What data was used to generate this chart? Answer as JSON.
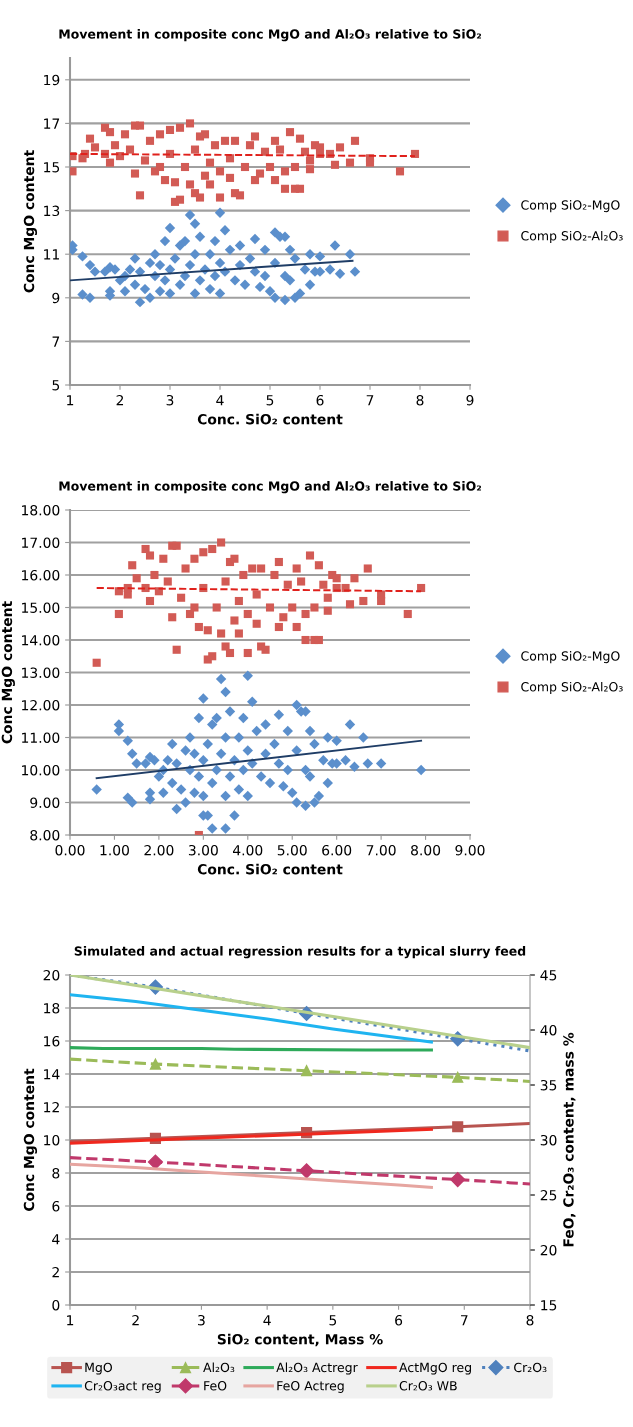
{
  "chart_data": [
    {
      "type": "scatter",
      "title": "Movement in composite conc MgO and Al₂O₃ relative to SiO₂",
      "xlabel": "Conc. SiO₂ content",
      "ylabel": "Conc MgO content",
      "xlim": [
        1,
        9
      ],
      "xticks": [
        1,
        2,
        3,
        4,
        5,
        6,
        7,
        8,
        9
      ],
      "ylim": [
        5,
        20
      ],
      "yticks": [
        5,
        7,
        9,
        11,
        13,
        15,
        17,
        19
      ],
      "grid": "y",
      "legend": "right",
      "series": [
        {
          "name": "Comp SiO₂-MgO",
          "marker": "diamond",
          "color": "#5b8fcc",
          "x": [
            1.05,
            1.05,
            1.25,
            1.4,
            1.5,
            1.25,
            1.4,
            1.7,
            1.8,
            1.8,
            1.8,
            1.9,
            2.0,
            2.1,
            2.1,
            2.2,
            2.3,
            2.3,
            2.4,
            2.4,
            2.5,
            2.6,
            2.6,
            2.7,
            2.7,
            2.8,
            2.8,
            2.9,
            2.9,
            3.0,
            3.0,
            3.0,
            3.1,
            3.2,
            3.2,
            3.3,
            3.3,
            3.4,
            3.4,
            3.5,
            3.5,
            3.5,
            3.6,
            3.6,
            3.7,
            3.8,
            3.8,
            3.9,
            3.9,
            4.0,
            4.0,
            4.0,
            4.1,
            4.1,
            4.2,
            4.3,
            4.4,
            4.4,
            4.5,
            4.6,
            4.7,
            4.7,
            4.8,
            4.9,
            4.9,
            5.0,
            5.1,
            5.1,
            5.1,
            5.2,
            5.3,
            5.3,
            5.3,
            5.4,
            5.4,
            5.5,
            5.5,
            5.6,
            5.7,
            5.8,
            5.8,
            5.9,
            6.0,
            6.0,
            6.2,
            6.3,
            6.4,
            6.6,
            6.7
          ],
          "values": [
            11.4,
            11.2,
            10.9,
            10.5,
            10.2,
            9.15,
            9.0,
            10.2,
            10.4,
            9.3,
            9.1,
            10.3,
            9.8,
            10.0,
            9.3,
            10.3,
            9.6,
            10.8,
            8.8,
            10.2,
            9.4,
            10.6,
            9.0,
            10.0,
            11.0,
            9.3,
            10.5,
            11.6,
            9.8,
            12.2,
            10.3,
            9.2,
            10.8,
            9.6,
            11.4,
            10.0,
            11.6,
            12.8,
            10.5,
            12.4,
            9.2,
            11.0,
            9.8,
            11.8,
            10.3,
            11.0,
            9.4,
            11.6,
            10.0,
            12.9,
            10.6,
            9.2,
            12.1,
            10.2,
            11.2,
            9.8,
            11.4,
            10.5,
            9.6,
            10.8,
            11.7,
            10.2,
            9.5,
            11.2,
            10.0,
            9.3,
            12.0,
            10.6,
            9.0,
            11.8,
            11.8,
            8.9,
            10.0,
            11.2,
            9.8,
            10.8,
            9.0,
            9.2,
            10.3,
            11.0,
            9.6,
            10.2,
            10.9,
            10.2,
            10.3,
            11.4,
            10.1,
            11.0,
            10.2
          ]
        },
        {
          "name": "Comp SiO₂-Al₂O₃",
          "marker": "square",
          "color": "#d25b55",
          "x": [
            1.05,
            1.05,
            1.25,
            1.3,
            1.4,
            1.5,
            1.7,
            1.7,
            1.8,
            1.8,
            1.9,
            2.0,
            2.1,
            2.2,
            2.3,
            2.3,
            2.4,
            2.4,
            2.5,
            2.6,
            2.7,
            2.8,
            2.8,
            2.9,
            3.0,
            3.0,
            3.1,
            3.1,
            3.2,
            3.2,
            3.3,
            3.4,
            3.4,
            3.5,
            3.5,
            3.6,
            3.6,
            3.7,
            3.7,
            3.8,
            3.8,
            3.9,
            4.0,
            4.0,
            4.1,
            4.2,
            4.2,
            4.3,
            4.3,
            4.4,
            4.5,
            4.6,
            4.7,
            4.7,
            4.8,
            4.9,
            5.0,
            5.1,
            5.1,
            5.2,
            5.3,
            5.3,
            5.4,
            5.5,
            5.5,
            5.6,
            5.6,
            5.7,
            5.8,
            5.8,
            5.9,
            6.0,
            6.0,
            6.2,
            6.3,
            6.4,
            6.6,
            6.7,
            7.0,
            7.0,
            7.6,
            7.9
          ],
          "values": [
            15.5,
            14.8,
            15.4,
            15.6,
            16.3,
            15.9,
            16.8,
            15.6,
            15.2,
            16.6,
            16.0,
            15.5,
            16.5,
            15.8,
            16.9,
            14.7,
            16.9,
            13.7,
            15.3,
            16.2,
            14.8,
            16.5,
            15.0,
            14.4,
            16.7,
            15.6,
            13.4,
            14.3,
            13.5,
            16.8,
            15.0,
            17.0,
            14.2,
            15.8,
            13.8,
            16.4,
            13.6,
            14.6,
            16.5,
            15.2,
            14.2,
            16.0,
            13.6,
            14.8,
            16.2,
            15.4,
            14.5,
            16.2,
            13.8,
            13.7,
            15.0,
            16.0,
            14.4,
            16.4,
            14.7,
            15.7,
            15.0,
            16.2,
            14.4,
            15.8,
            14.0,
            14.8,
            16.6,
            15.0,
            14.0,
            14.0,
            16.3,
            15.7,
            15.3,
            14.9,
            16.0,
            15.9,
            15.6,
            15.6,
            15.1,
            15.9,
            15.2,
            16.2,
            15.4,
            15.2,
            14.8,
            15.6
          ]
        },
        {
          "type": "line",
          "line_style": "solid",
          "color": "#1f3d66",
          "x": [
            1,
            6.65
          ],
          "values": [
            9.8,
            10.7
          ]
        },
        {
          "type": "line",
          "line_style": "dashed",
          "color": "#e0201b",
          "x": [
            1,
            7.9
          ],
          "values": [
            15.6,
            15.5
          ]
        }
      ]
    },
    {
      "type": "scatter",
      "title": "Movement in composite conc MgO and Al₂O₃ relative to SiO₂",
      "xlabel": "Conc. SiO₂ content",
      "ylabel": "Conc MgO content",
      "xlim": [
        0,
        9
      ],
      "xticks": [
        {
          "value": 0,
          "label": "0.00"
        },
        {
          "value": 1,
          "label": "1.00"
        },
        {
          "value": 2,
          "label": "2.00"
        },
        {
          "value": 3,
          "label": "3.00"
        },
        {
          "value": 4,
          "label": "4.00"
        },
        {
          "value": 5,
          "label": "5.00"
        },
        {
          "value": 6,
          "label": "6.00"
        },
        {
          "value": 7,
          "label": "7.00"
        },
        {
          "value": 8,
          "label": "8.00"
        },
        {
          "value": 9,
          "label": "9.00"
        }
      ],
      "ylim": [
        8,
        18
      ],
      "yticks": [
        {
          "value": 8,
          "label": "8.00"
        },
        {
          "value": 9,
          "label": "9.00"
        },
        {
          "value": 10,
          "label": "10.00"
        },
        {
          "value": 11,
          "label": "11.00"
        },
        {
          "value": 12,
          "label": "12.00"
        },
        {
          "value": 13,
          "label": "13.00"
        },
        {
          "value": 14,
          "label": "14.00"
        },
        {
          "value": 15,
          "label": "15.00"
        },
        {
          "value": 16,
          "label": "16.00"
        },
        {
          "value": 17,
          "label": "17.00"
        },
        {
          "value": 18,
          "label": "18.00"
        }
      ],
      "grid": "y",
      "legend": "right",
      "series": [
        {
          "name": "Comp SiO₂-MgO",
          "marker": "diamond",
          "color": "#5b8fcc",
          "x": [
            0.6,
            1.1,
            1.1,
            1.3,
            1.4,
            1.5,
            1.3,
            1.4,
            1.7,
            1.8,
            1.8,
            1.8,
            1.9,
            2.0,
            2.1,
            2.1,
            2.2,
            2.3,
            2.3,
            2.4,
            2.4,
            2.5,
            2.6,
            2.6,
            2.7,
            2.7,
            2.8,
            2.8,
            2.9,
            2.9,
            3.0,
            3.0,
            3.0,
            3.1,
            3.2,
            3.2,
            3.3,
            3.3,
            3.4,
            3.4,
            3.5,
            3.5,
            3.5,
            3.6,
            3.6,
            3.7,
            3.8,
            3.8,
            3.9,
            3.9,
            4.0,
            4.0,
            4.0,
            4.1,
            4.1,
            4.2,
            4.3,
            4.4,
            4.4,
            4.5,
            4.6,
            4.7,
            4.7,
            4.8,
            4.9,
            4.9,
            5.0,
            5.1,
            5.1,
            5.1,
            5.2,
            5.3,
            5.3,
            5.3,
            5.4,
            5.4,
            5.5,
            5.5,
            5.6,
            5.7,
            5.8,
            5.8,
            5.9,
            6.0,
            6.0,
            6.2,
            6.3,
            6.4,
            6.6,
            6.7,
            7.0,
            7.9,
            3.0,
            3.1,
            3.2,
            3.5,
            3.7
          ],
          "values": [
            9.4,
            11.4,
            11.2,
            10.9,
            10.5,
            10.2,
            9.15,
            9.0,
            10.2,
            10.4,
            9.3,
            9.1,
            10.3,
            9.8,
            10.0,
            9.3,
            10.3,
            9.6,
            10.8,
            8.8,
            10.2,
            9.4,
            10.6,
            9.0,
            10.0,
            11.0,
            9.3,
            10.5,
            11.6,
            9.8,
            12.2,
            10.3,
            9.2,
            10.8,
            9.6,
            11.4,
            10.0,
            11.6,
            12.8,
            10.5,
            12.4,
            9.2,
            11.0,
            9.8,
            11.8,
            10.3,
            11.0,
            9.4,
            11.6,
            10.0,
            12.9,
            10.6,
            9.2,
            12.1,
            10.2,
            11.2,
            9.8,
            11.4,
            10.5,
            9.6,
            10.8,
            11.7,
            10.2,
            9.5,
            11.2,
            10.0,
            9.3,
            12.0,
            10.6,
            9.0,
            11.8,
            11.8,
            8.9,
            10.0,
            11.2,
            9.8,
            10.8,
            9.0,
            9.2,
            10.3,
            11.0,
            9.6,
            10.2,
            10.9,
            10.2,
            10.3,
            11.4,
            10.1,
            11.0,
            10.2,
            10.2,
            10.0,
            8.6,
            8.6,
            8.2,
            8.2,
            8.6
          ]
        },
        {
          "name": "Comp SiO₂-Al₂O₃",
          "marker": "square",
          "color": "#d25b55",
          "x": [
            0.6,
            1.1,
            1.1,
            1.3,
            1.3,
            1.4,
            1.5,
            1.7,
            1.7,
            1.8,
            1.8,
            1.9,
            2.0,
            2.1,
            2.2,
            2.3,
            2.3,
            2.4,
            2.4,
            2.5,
            2.6,
            2.7,
            2.8,
            2.8,
            2.9,
            2.9,
            3.0,
            3.0,
            3.1,
            3.1,
            3.2,
            3.2,
            3.3,
            3.4,
            3.4,
            3.5,
            3.5,
            3.6,
            3.6,
            3.7,
            3.7,
            3.8,
            3.8,
            3.9,
            4.0,
            4.0,
            4.1,
            4.2,
            4.2,
            4.3,
            4.3,
            4.4,
            4.5,
            4.6,
            4.7,
            4.7,
            4.8,
            4.9,
            5.0,
            5.1,
            5.1,
            5.2,
            5.3,
            5.3,
            5.4,
            5.5,
            5.5,
            5.6,
            5.6,
            5.7,
            5.8,
            5.8,
            5.9,
            6.0,
            6.0,
            6.2,
            6.3,
            6.4,
            6.6,
            6.7,
            7.0,
            7.0,
            7.6,
            7.9
          ],
          "values": [
            13.3,
            15.5,
            14.8,
            15.4,
            15.6,
            16.3,
            15.9,
            16.8,
            15.6,
            15.2,
            16.6,
            16.0,
            15.5,
            16.5,
            15.8,
            16.9,
            14.7,
            16.9,
            13.7,
            15.3,
            16.2,
            14.8,
            16.5,
            15.0,
            14.4,
            8.0,
            16.7,
            15.6,
            13.4,
            14.3,
            13.5,
            16.8,
            15.0,
            17.0,
            14.2,
            15.8,
            13.8,
            16.4,
            13.6,
            14.6,
            16.5,
            15.2,
            14.2,
            16.0,
            13.6,
            14.8,
            16.2,
            15.4,
            14.5,
            16.2,
            13.8,
            13.7,
            15.0,
            16.0,
            14.4,
            16.4,
            14.7,
            15.7,
            15.0,
            16.2,
            14.4,
            15.8,
            14.0,
            14.8,
            16.6,
            15.0,
            14.0,
            14.0,
            16.3,
            15.7,
            15.3,
            14.9,
            16.0,
            15.9,
            15.6,
            15.6,
            15.1,
            15.9,
            15.2,
            16.2,
            15.4,
            15.2,
            14.8,
            15.6
          ]
        },
        {
          "type": "line",
          "line_style": "solid",
          "color": "#1f3d66",
          "x": [
            0.6,
            7.9
          ],
          "values": [
            9.75,
            10.9
          ]
        },
        {
          "type": "line",
          "line_style": "dashed",
          "color": "#e0201b",
          "x": [
            0.6,
            7.9
          ],
          "values": [
            15.6,
            15.5
          ]
        }
      ]
    },
    {
      "type": "line",
      "title": "Simulated and actual regression results for a typical slurry feed",
      "xlabel": "SiO₂ content, Mass %",
      "ylabel": "Conc MgO content",
      "y2label": "FeO, Cr₂O₃ content, mass %",
      "xlim": [
        1,
        8
      ],
      "xticks": [
        1,
        2,
        3,
        4,
        5,
        6,
        7,
        8
      ],
      "ylim": [
        0,
        20
      ],
      "yticks": [
        0,
        2,
        4,
        6,
        8,
        10,
        12,
        14,
        16,
        18,
        20
      ],
      "y2lim": [
        15,
        45
      ],
      "y2ticks": [
        15,
        20,
        25,
        30,
        35,
        40,
        45
      ],
      "grid": "y",
      "legend": "bottom",
      "series": [
        {
          "name": "MgO",
          "marker": "square",
          "line_style": "solid",
          "color": "#b85450",
          "x": [
            1,
            2.3,
            4.6,
            6.9,
            8
          ],
          "values": [
            9.9,
            10.1,
            10.45,
            10.8,
            11.0
          ]
        },
        {
          "name": "Al₂O₃",
          "marker": "triangle",
          "line_style": "dashed",
          "color": "#9bbb59",
          "x": [
            1,
            2.3,
            4.6,
            6.9,
            8
          ],
          "values": [
            14.9,
            14.6,
            14.2,
            13.8,
            13.55
          ]
        },
        {
          "name": "Al₂O₃ Actregr",
          "line_style": "solid",
          "color": "#2eaa5a",
          "x": [
            1,
            1.5,
            3,
            3.5,
            5.5,
            6.5
          ],
          "values": [
            15.6,
            15.55,
            15.55,
            15.5,
            15.45,
            15.45
          ]
        },
        {
          "name": "ActMgO reg",
          "line_style": "solid",
          "color": "#f0281e",
          "x": [
            1,
            6.5
          ],
          "values": [
            9.8,
            10.65
          ]
        },
        {
          "name": "Cr₂O₃",
          "axis": "y2",
          "marker": "diamond",
          "line_style": "dotted",
          "color": "#4f81bd",
          "x": [
            1,
            2.3,
            4.6,
            6.9,
            8
          ],
          "values": [
            45,
            43.9,
            41.5,
            39.2,
            38.1
          ]
        },
        {
          "name": "Cr₂O₃act reg",
          "axis": "y2",
          "line_style": "solid",
          "color": "#1fb4f0",
          "x": [
            1,
            2,
            3,
            4,
            5,
            6,
            6.5
          ],
          "values": [
            43.2,
            42.6,
            41.8,
            41.0,
            40.1,
            39.3,
            38.9
          ]
        },
        {
          "name": "FeO",
          "axis": "y2",
          "marker": "diamond",
          "line_style": "dashed",
          "color": "#c0396b",
          "x": [
            1,
            2.3,
            4.6,
            6.9,
            8
          ],
          "values": [
            28.4,
            28.0,
            27.2,
            26.4,
            26.0
          ]
        },
        {
          "name": "FeO Actreg",
          "axis": "y2",
          "line_style": "solid",
          "color": "#e6a5a0",
          "x": [
            1,
            2,
            3,
            4,
            5,
            6,
            6.5
          ],
          "values": [
            27.8,
            27.5,
            27.1,
            26.7,
            26.3,
            25.9,
            25.7
          ]
        },
        {
          "name": "Cr₂O₃ WB",
          "axis": "y2",
          "line_style": "solid",
          "color": "#b8d08c",
          "x": [
            1,
            8
          ],
          "values": [
            45,
            38.4
          ]
        }
      ]
    }
  ]
}
